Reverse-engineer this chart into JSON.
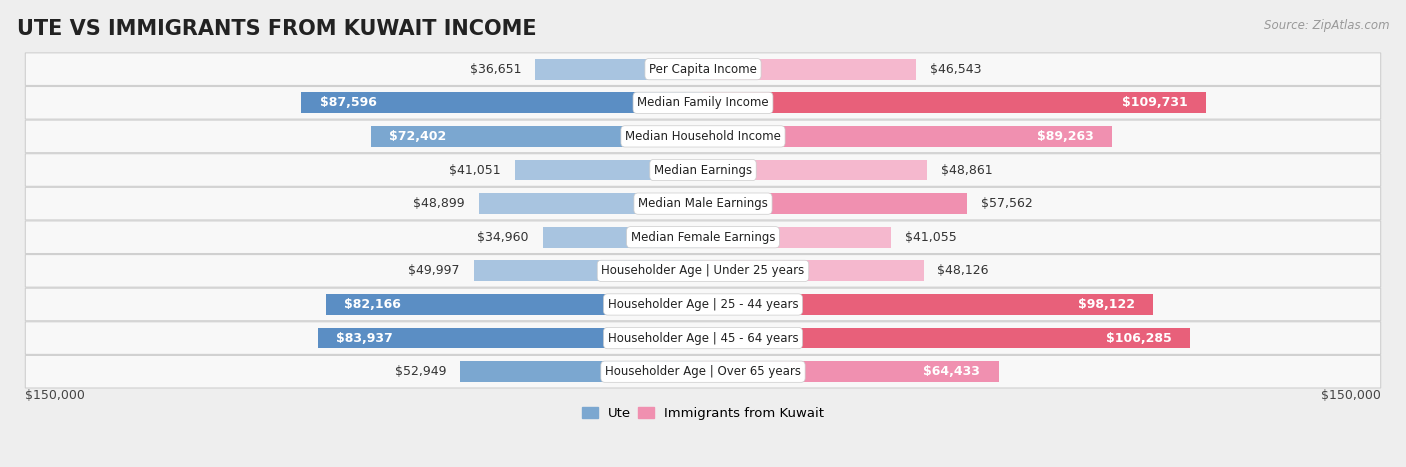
{
  "title": "UTE VS IMMIGRANTS FROM KUWAIT INCOME",
  "source": "Source: ZipAtlas.com",
  "categories": [
    "Per Capita Income",
    "Median Family Income",
    "Median Household Income",
    "Median Earnings",
    "Median Male Earnings",
    "Median Female Earnings",
    "Householder Age | Under 25 years",
    "Householder Age | 25 - 44 years",
    "Householder Age | 45 - 64 years",
    "Householder Age | Over 65 years"
  ],
  "ute_values": [
    36651,
    87596,
    72402,
    41051,
    48899,
    34960,
    49997,
    82166,
    83937,
    52949
  ],
  "kuwait_values": [
    46543,
    109731,
    89263,
    48861,
    57562,
    41055,
    48126,
    98122,
    106285,
    64433
  ],
  "ute_color_light": "#A8C4E0",
  "ute_color_medium": "#7BA7D0",
  "ute_color_strong": "#5B8EC4",
  "kuwait_color_light": "#F5B8CE",
  "kuwait_color_medium": "#F090B0",
  "kuwait_color_strong": "#E8607A",
  "axis_max": 150000,
  "background_color": "#eeeeee",
  "row_bg_color": "#f8f8f8",
  "row_border_color": "#d0d0d0",
  "title_fontsize": 15,
  "value_fontsize": 9,
  "category_fontsize": 8.5,
  "legend_fontsize": 9.5,
  "source_fontsize": 8.5,
  "large_bar_threshold": 60000,
  "white_label_threshold": 60000
}
